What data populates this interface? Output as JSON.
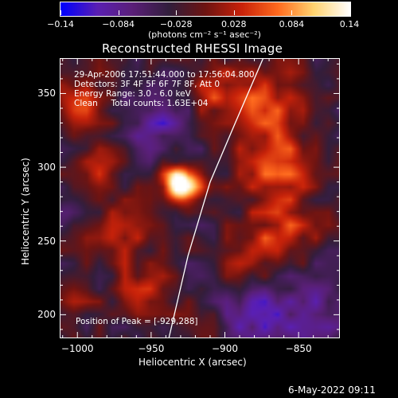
{
  "colorbar": {
    "ticks": [
      "-0.14",
      "-0.084",
      "-0.028",
      "0.028",
      "0.084",
      "0.14"
    ],
    "unit": "(photons cm⁻² s⁻¹ asec⁻²)",
    "range": [
      -0.14,
      0.14
    ]
  },
  "annotations": {
    "line1": "29-Apr-2006 17:51:44.000 to 17:56:04.800",
    "line2": "Detectors: 3F 4F 5F 6F 7F 8F, Att 0",
    "line3": "Energy Range: 3.0 - 6.0 keV",
    "line4": "Clean     Total counts: 1.63E+04",
    "peak": "Position of Peak = [-929,288]"
  },
  "footer": {
    "date": "6-May-2022 09:11"
  },
  "chart_data": {
    "type": "heatmap",
    "title": "Reconstructed RHESSI Image",
    "xlabel": "Heliocentric X (arcsec)",
    "ylabel": "Heliocentric Y (arcsec)",
    "xlim": [
      -1012,
      -822
    ],
    "ylim": [
      184,
      374
    ],
    "xticks": [
      -1000,
      -950,
      -900,
      -850
    ],
    "xtick_labels": [
      "−1000",
      "−950",
      "−900",
      "−850"
    ],
    "yticks": [
      200,
      250,
      300,
      350
    ],
    "ytick_labels": [
      "200",
      "250",
      "300",
      "350"
    ],
    "peak": {
      "x": -929,
      "y": 288,
      "value": 0.14
    },
    "limb_curve": [
      [
        -938,
        184
      ],
      [
        -925,
        240
      ],
      [
        -910,
        290
      ],
      [
        -893,
        330
      ],
      [
        -874,
        374
      ]
    ],
    "colormap": [
      "#0000ff",
      "#5a1fb4",
      "#5a1f78",
      "#321e3c",
      "#6e1412",
      "#c8220a",
      "#ff6a1e",
      "#ffd470",
      "#ffffff"
    ]
  }
}
